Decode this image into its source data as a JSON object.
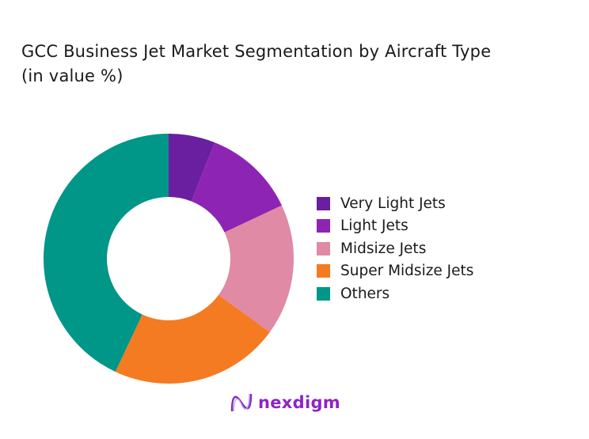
{
  "chart_data": {
    "type": "pie",
    "donut": true,
    "title": "GCC Business Jet Market Segmentation by Aircraft Type",
    "subtitle": "(in value %)",
    "legend_position": "right",
    "categories": [
      "Very Light Jets",
      "Light Jets",
      "Midsize Jets",
      "Super Midsize Jets",
      "Others"
    ],
    "values": [
      6,
      12,
      17,
      22,
      43
    ],
    "colors": [
      "#6a1fa0",
      "#8e24b4",
      "#e08aa5",
      "#f47b22",
      "#009688"
    ]
  },
  "brand": {
    "name": "nexdigm",
    "color": "#8e24c5"
  }
}
